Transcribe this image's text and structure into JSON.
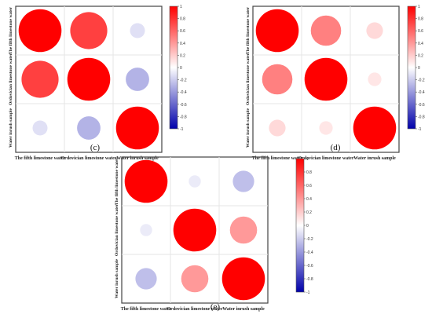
{
  "chart_data": [
    {
      "type": "heatmap",
      "panel_label": "(c)",
      "row_labels": [
        "The fifth limestone water",
        "Ordovician limestone water",
        "Water inrush sample"
      ],
      "col_labels": [
        "The fifth limestone water",
        "Ordovician limestone water",
        "Water inrush sample"
      ],
      "matrix": [
        [
          1.0,
          0.75,
          -0.12
        ],
        [
          0.75,
          1.0,
          -0.3
        ],
        [
          -0.12,
          -0.3,
          1.0
        ]
      ],
      "colorbar": {
        "ticks": [
          "1",
          "0.8",
          "0.6",
          "0.4",
          "0.2",
          "0",
          "-0.2",
          "-0.4",
          "-0.6",
          "-0.8",
          "-1"
        ],
        "range": [
          -1,
          1
        ]
      }
    },
    {
      "type": "heatmap",
      "panel_label": "(d)",
      "row_labels": [
        "The fifth limestone water",
        "Ordovician limestone water",
        "Water inrush sample"
      ],
      "col_labels": [
        "The fifth limestone water",
        "Ordovician limestone water",
        "Water inrush sample"
      ],
      "matrix": [
        [
          1.0,
          0.5,
          0.15
        ],
        [
          0.5,
          1.0,
          0.1
        ],
        [
          0.15,
          0.1,
          1.0
        ]
      ],
      "colorbar": {
        "ticks": [
          "1",
          "0.8",
          "0.6",
          "0.4",
          "0.2",
          "0",
          "-0.2",
          "-0.4",
          "-0.6",
          "-0.8",
          "-1"
        ],
        "range": [
          -1,
          1
        ]
      }
    },
    {
      "type": "heatmap",
      "panel_label": "(e)",
      "row_labels": [
        "The fifth limestone water",
        "Ordovician limestone water",
        "Water inrush sample"
      ],
      "col_labels": [
        "The fifth limestone water",
        "Ordovician limestone water",
        "Water inrush sample"
      ],
      "matrix": [
        [
          1.0,
          -0.08,
          -0.25
        ],
        [
          -0.08,
          1.0,
          0.4
        ],
        [
          -0.25,
          0.4,
          1.0
        ]
      ],
      "colorbar": {
        "ticks": [
          "1",
          "0.8",
          "0.6",
          "0.4",
          "0.2",
          "0",
          "-0.2",
          "-0.4",
          "-0.6",
          "-0.8",
          "-1"
        ],
        "range": [
          -1,
          1
        ]
      }
    }
  ]
}
